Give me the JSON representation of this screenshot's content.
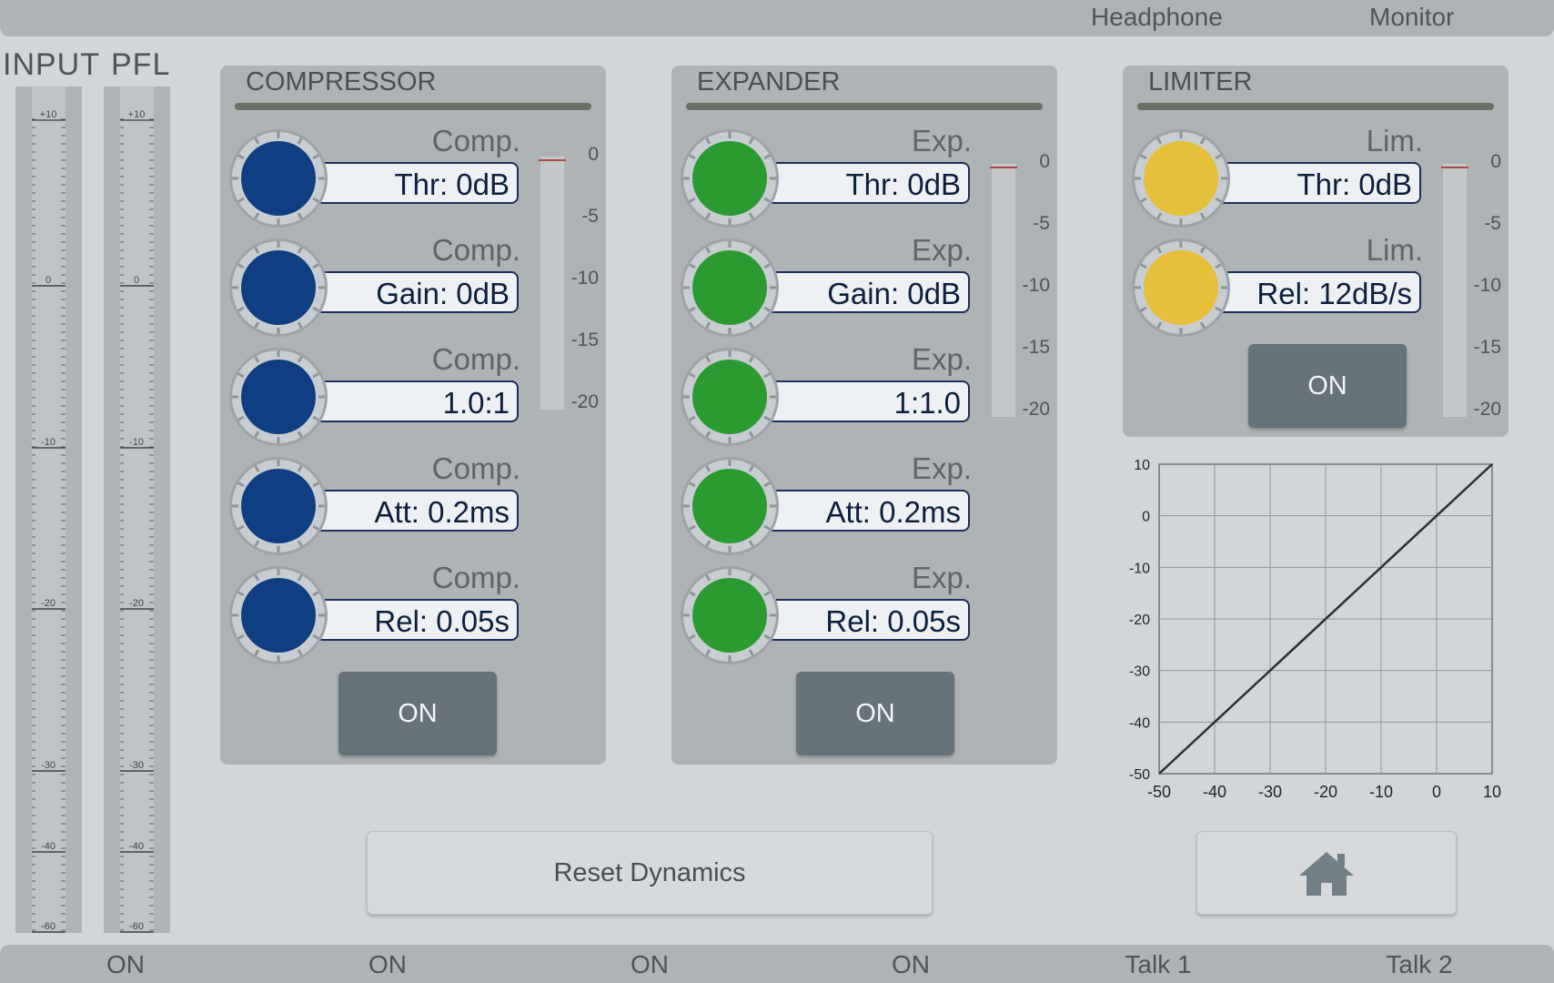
{
  "header": {
    "headphone": "Headphone",
    "monitor": "Monitor"
  },
  "meters": {
    "input_title": "INPUT",
    "pfl_title": "PFL",
    "scale": [
      "+10",
      "0",
      "-10",
      "-20",
      "-30",
      "-40",
      "-60"
    ]
  },
  "compressor": {
    "title": "COMPRESSOR",
    "knob_color": "#0f3f82",
    "controls": [
      {
        "label": "Comp.",
        "value": "Thr: 0dB"
      },
      {
        "label": "Comp.",
        "value": "Gain: 0dB"
      },
      {
        "label": "Comp.",
        "value": "1.0:1"
      },
      {
        "label": "Comp.",
        "value": "Att: 0.2ms"
      },
      {
        "label": "Comp.",
        "value": "Rel: 0.05s"
      }
    ],
    "on_label": "ON",
    "gr_scale": [
      "0",
      "-5",
      "-10",
      "-15",
      "-20"
    ]
  },
  "expander": {
    "title": "EXPANDER",
    "knob_color": "#2a9a31",
    "controls": [
      {
        "label": "Exp.",
        "value": "Thr: 0dB"
      },
      {
        "label": "Exp.",
        "value": "Gain: 0dB"
      },
      {
        "label": "Exp.",
        "value": "1:1.0"
      },
      {
        "label": "Exp.",
        "value": "Att: 0.2ms"
      },
      {
        "label": "Exp.",
        "value": "Rel: 0.05s"
      }
    ],
    "on_label": "ON",
    "gr_scale": [
      "0",
      "-5",
      "-10",
      "-15",
      "-20"
    ]
  },
  "limiter": {
    "title": "LIMITER",
    "knob_color": "#e6c03a",
    "controls": [
      {
        "label": "Lim.",
        "value": "Thr: 0dB"
      },
      {
        "label": "Lim.",
        "value": "Rel: 12dB/s"
      }
    ],
    "on_label": "ON",
    "gr_scale": [
      "0",
      "-5",
      "-10",
      "-15",
      "-20"
    ]
  },
  "chart_data": {
    "type": "line",
    "title": "",
    "xlabel": "",
    "ylabel": "",
    "x_ticks": [
      "-50",
      "-40",
      "-30",
      "-20",
      "-10",
      "0",
      "10"
    ],
    "y_ticks": [
      "10",
      "0",
      "-10",
      "-20",
      "-30",
      "-40",
      "-50"
    ],
    "xlim": [
      -50,
      10
    ],
    "ylim": [
      -50,
      10
    ],
    "grid": true,
    "series": [
      {
        "x": [
          -50,
          10
        ],
        "y": [
          -50,
          10
        ]
      }
    ]
  },
  "actions": {
    "reset_label": "Reset Dynamics",
    "home_icon": "home-icon"
  },
  "footer": {
    "buttons": [
      "ON",
      "ON",
      "ON",
      "ON",
      "Talk 1",
      "Talk 2"
    ]
  }
}
